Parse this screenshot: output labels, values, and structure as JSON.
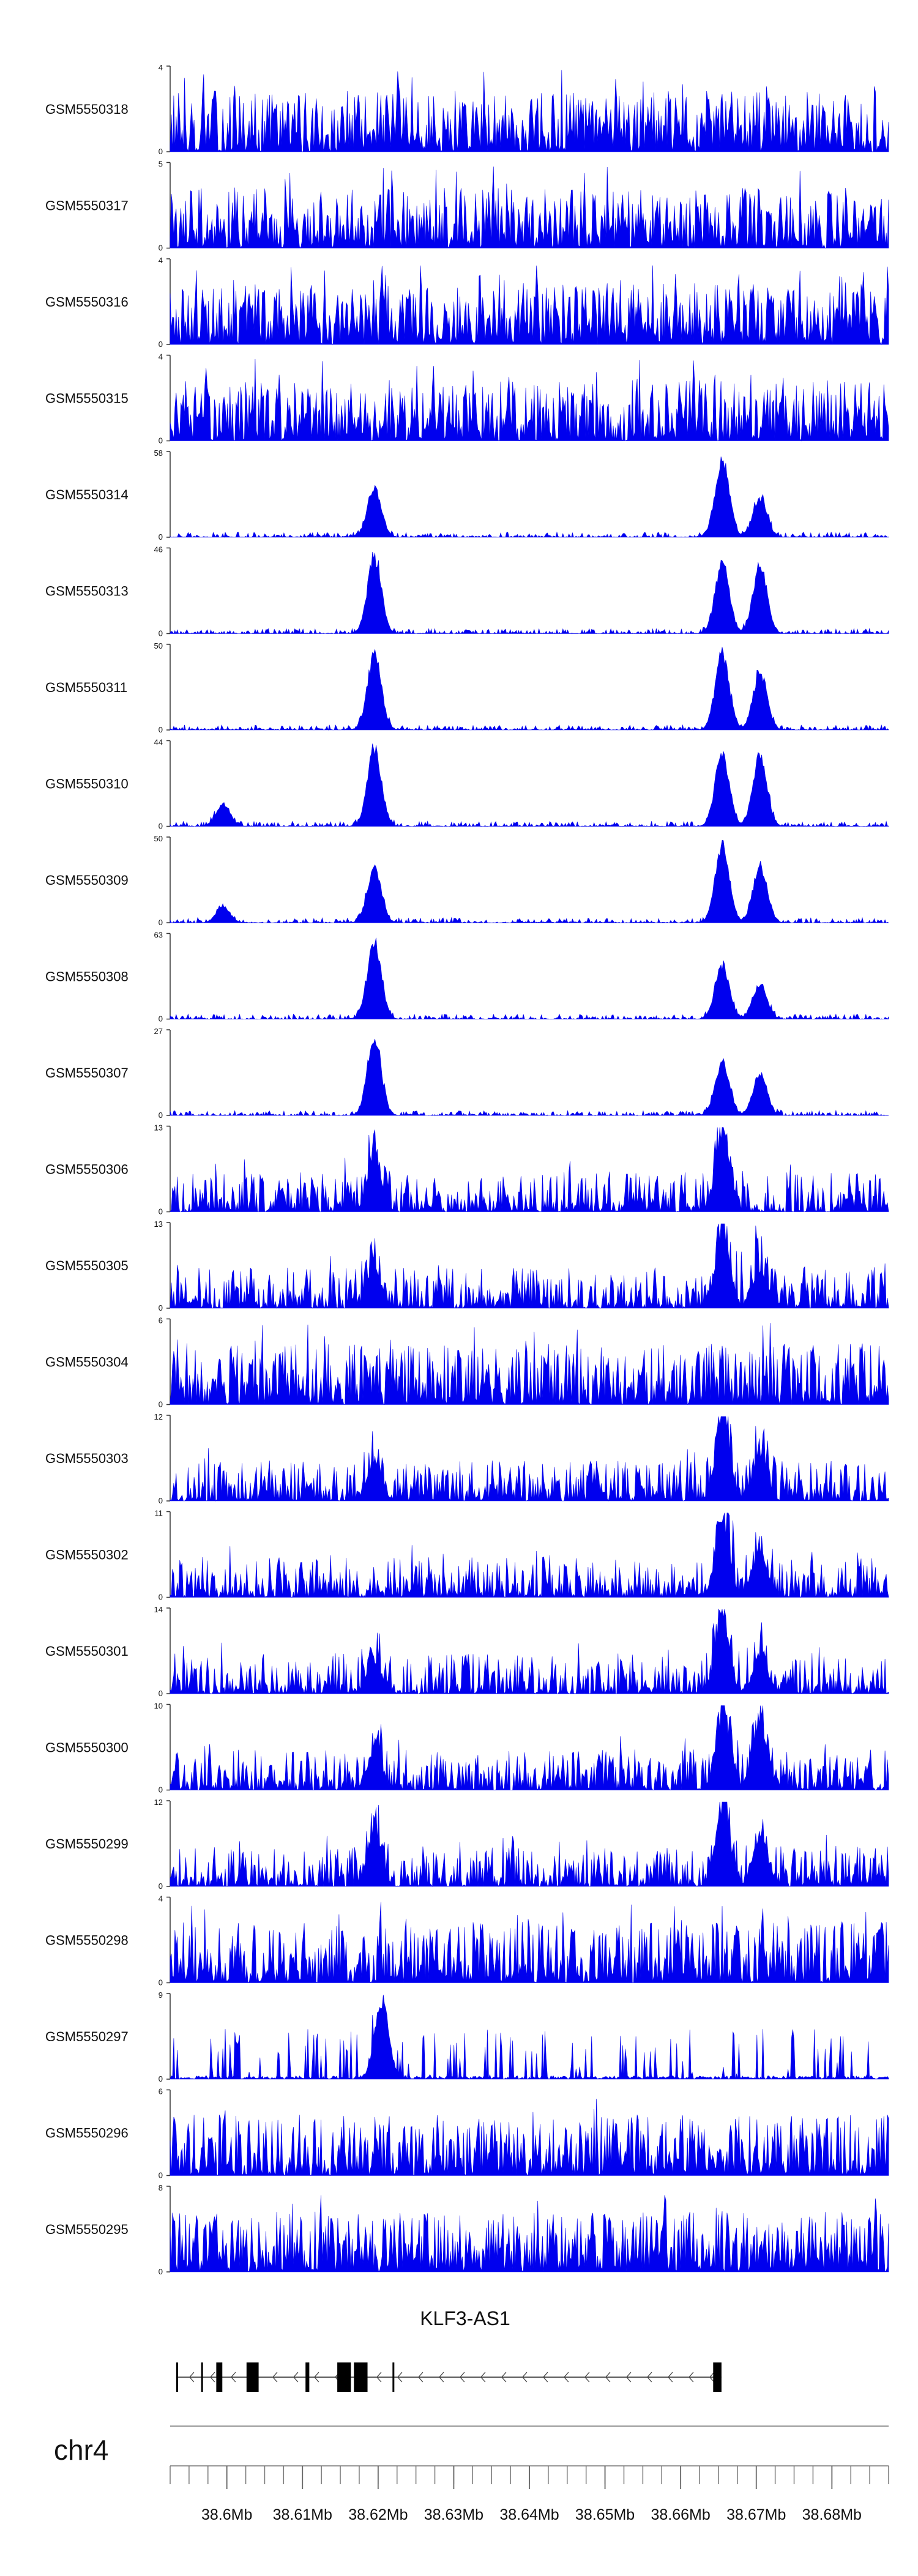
{
  "chart_data": {
    "type": "area",
    "genome": {
      "chromosome": "chr4",
      "xlim": [
        38.5925,
        38.6875
      ],
      "ticks": [
        38.6,
        38.61,
        38.62,
        38.63,
        38.64,
        38.65,
        38.66,
        38.67,
        38.68
      ],
      "tick_labels": [
        "38.6Mb",
        "38.61Mb",
        "38.62Mb",
        "38.63Mb",
        "38.64Mb",
        "38.65Mb",
        "38.66Mb",
        "38.67Mb",
        "38.68Mb"
      ],
      "minor_tick_step": 0.0025
    },
    "gene": {
      "name": "KLF3-AS1",
      "strand": "-",
      "start": 38.5933,
      "end": 38.6654,
      "exons": [
        [
          38.5933,
          38.5934
        ],
        [
          38.5966,
          38.5968
        ],
        [
          38.5986,
          38.5994
        ],
        [
          38.6026,
          38.6042
        ],
        [
          38.6104,
          38.6109
        ],
        [
          38.6146,
          38.6164
        ],
        [
          38.6168,
          38.6186
        ],
        [
          38.6219,
          38.6221
        ],
        [
          38.6643,
          38.6654
        ]
      ]
    },
    "tracks": [
      {
        "name": "GSM5550318",
        "ymax": 4,
        "profile": "noise",
        "peaks": []
      },
      {
        "name": "GSM5550317",
        "ymax": 5,
        "profile": "noise",
        "peaks": []
      },
      {
        "name": "GSM5550316",
        "ymax": 4,
        "profile": "noise",
        "peaks": []
      },
      {
        "name": "GSM5550315",
        "ymax": 4,
        "profile": "noise",
        "peaks": []
      },
      {
        "name": "GSM5550314",
        "ymax": 58,
        "profile": "peaks",
        "peaks": [
          {
            "x": 38.6195,
            "h": 0.62
          },
          {
            "x": 38.6655,
            "h": 1.0
          },
          {
            "x": 38.6705,
            "h": 0.5
          }
        ]
      },
      {
        "name": "GSM5550313",
        "ymax": 46,
        "profile": "peaks",
        "peaks": [
          {
            "x": 38.6195,
            "h": 0.98
          },
          {
            "x": 38.6655,
            "h": 0.92
          },
          {
            "x": 38.6705,
            "h": 0.88
          }
        ]
      },
      {
        "name": "GSM5550311",
        "ymax": 50,
        "profile": "peaks",
        "peaks": [
          {
            "x": 38.6195,
            "h": 0.96
          },
          {
            "x": 38.6655,
            "h": 0.96
          },
          {
            "x": 38.6705,
            "h": 0.74
          }
        ]
      },
      {
        "name": "GSM5550310",
        "ymax": 44,
        "profile": "peaks",
        "peaks": [
          {
            "x": 38.5995,
            "h": 0.28
          },
          {
            "x": 38.6195,
            "h": 1.0
          },
          {
            "x": 38.6655,
            "h": 0.92
          },
          {
            "x": 38.6705,
            "h": 0.9
          }
        ]
      },
      {
        "name": "GSM5550309",
        "ymax": 50,
        "profile": "peaks",
        "peaks": [
          {
            "x": 38.5995,
            "h": 0.2
          },
          {
            "x": 38.6195,
            "h": 0.7
          },
          {
            "x": 38.6655,
            "h": 1.0
          },
          {
            "x": 38.6705,
            "h": 0.7
          }
        ]
      },
      {
        "name": "GSM5550308",
        "ymax": 63,
        "profile": "peaks",
        "peaks": [
          {
            "x": 38.6195,
            "h": 1.0
          },
          {
            "x": 38.6655,
            "h": 0.7
          },
          {
            "x": 38.6705,
            "h": 0.44
          }
        ]
      },
      {
        "name": "GSM5550307",
        "ymax": 27,
        "profile": "peaks",
        "peaks": [
          {
            "x": 38.6195,
            "h": 0.98
          },
          {
            "x": 38.6655,
            "h": 0.7
          },
          {
            "x": 38.6705,
            "h": 0.5
          }
        ]
      },
      {
        "name": "GSM5550306",
        "ymax": 13,
        "profile": "mixed",
        "peaks": [
          {
            "x": 38.6195,
            "h": 0.65
          },
          {
            "x": 38.6655,
            "h": 0.98
          }
        ]
      },
      {
        "name": "GSM5550305",
        "ymax": 13,
        "profile": "mixed",
        "peaks": [
          {
            "x": 38.6195,
            "h": 0.45
          },
          {
            "x": 38.6655,
            "h": 0.97
          },
          {
            "x": 38.6705,
            "h": 0.45
          }
        ]
      },
      {
        "name": "GSM5550304",
        "ymax": 6,
        "profile": "noise",
        "peaks": []
      },
      {
        "name": "GSM5550303",
        "ymax": 12,
        "profile": "mixed",
        "peaks": [
          {
            "x": 38.6195,
            "h": 0.5
          },
          {
            "x": 38.6655,
            "h": 0.98
          },
          {
            "x": 38.6705,
            "h": 0.55
          }
        ]
      },
      {
        "name": "GSM5550302",
        "ymax": 11,
        "profile": "mixed",
        "peaks": [
          {
            "x": 38.6655,
            "h": 0.98
          },
          {
            "x": 38.6705,
            "h": 0.55
          }
        ]
      },
      {
        "name": "GSM5550301",
        "ymax": 14,
        "profile": "mixed",
        "peaks": [
          {
            "x": 38.6195,
            "h": 0.4
          },
          {
            "x": 38.6655,
            "h": 0.98
          },
          {
            "x": 38.6705,
            "h": 0.5
          }
        ]
      },
      {
        "name": "GSM5550300",
        "ymax": 10,
        "profile": "mixed",
        "peaks": [
          {
            "x": 38.6195,
            "h": 0.5
          },
          {
            "x": 38.6655,
            "h": 0.9
          },
          {
            "x": 38.6705,
            "h": 0.8
          }
        ]
      },
      {
        "name": "GSM5550299",
        "ymax": 12,
        "profile": "mixed",
        "peaks": [
          {
            "x": 38.6195,
            "h": 0.7
          },
          {
            "x": 38.6655,
            "h": 0.97
          },
          {
            "x": 38.6705,
            "h": 0.6
          }
        ]
      },
      {
        "name": "GSM5550298",
        "ymax": 4,
        "profile": "noise",
        "peaks": []
      },
      {
        "name": "GSM5550297",
        "ymax": 9,
        "profile": "sparse",
        "peaks": [
          {
            "x": 38.6205,
            "h": 0.97
          }
        ]
      },
      {
        "name": "GSM5550296",
        "ymax": 6,
        "profile": "noise",
        "peaks": []
      },
      {
        "name": "GSM5550295",
        "ymax": 8,
        "profile": "noise",
        "peaks": []
      }
    ],
    "color": "#0000ee",
    "axis_color": "#333333"
  }
}
